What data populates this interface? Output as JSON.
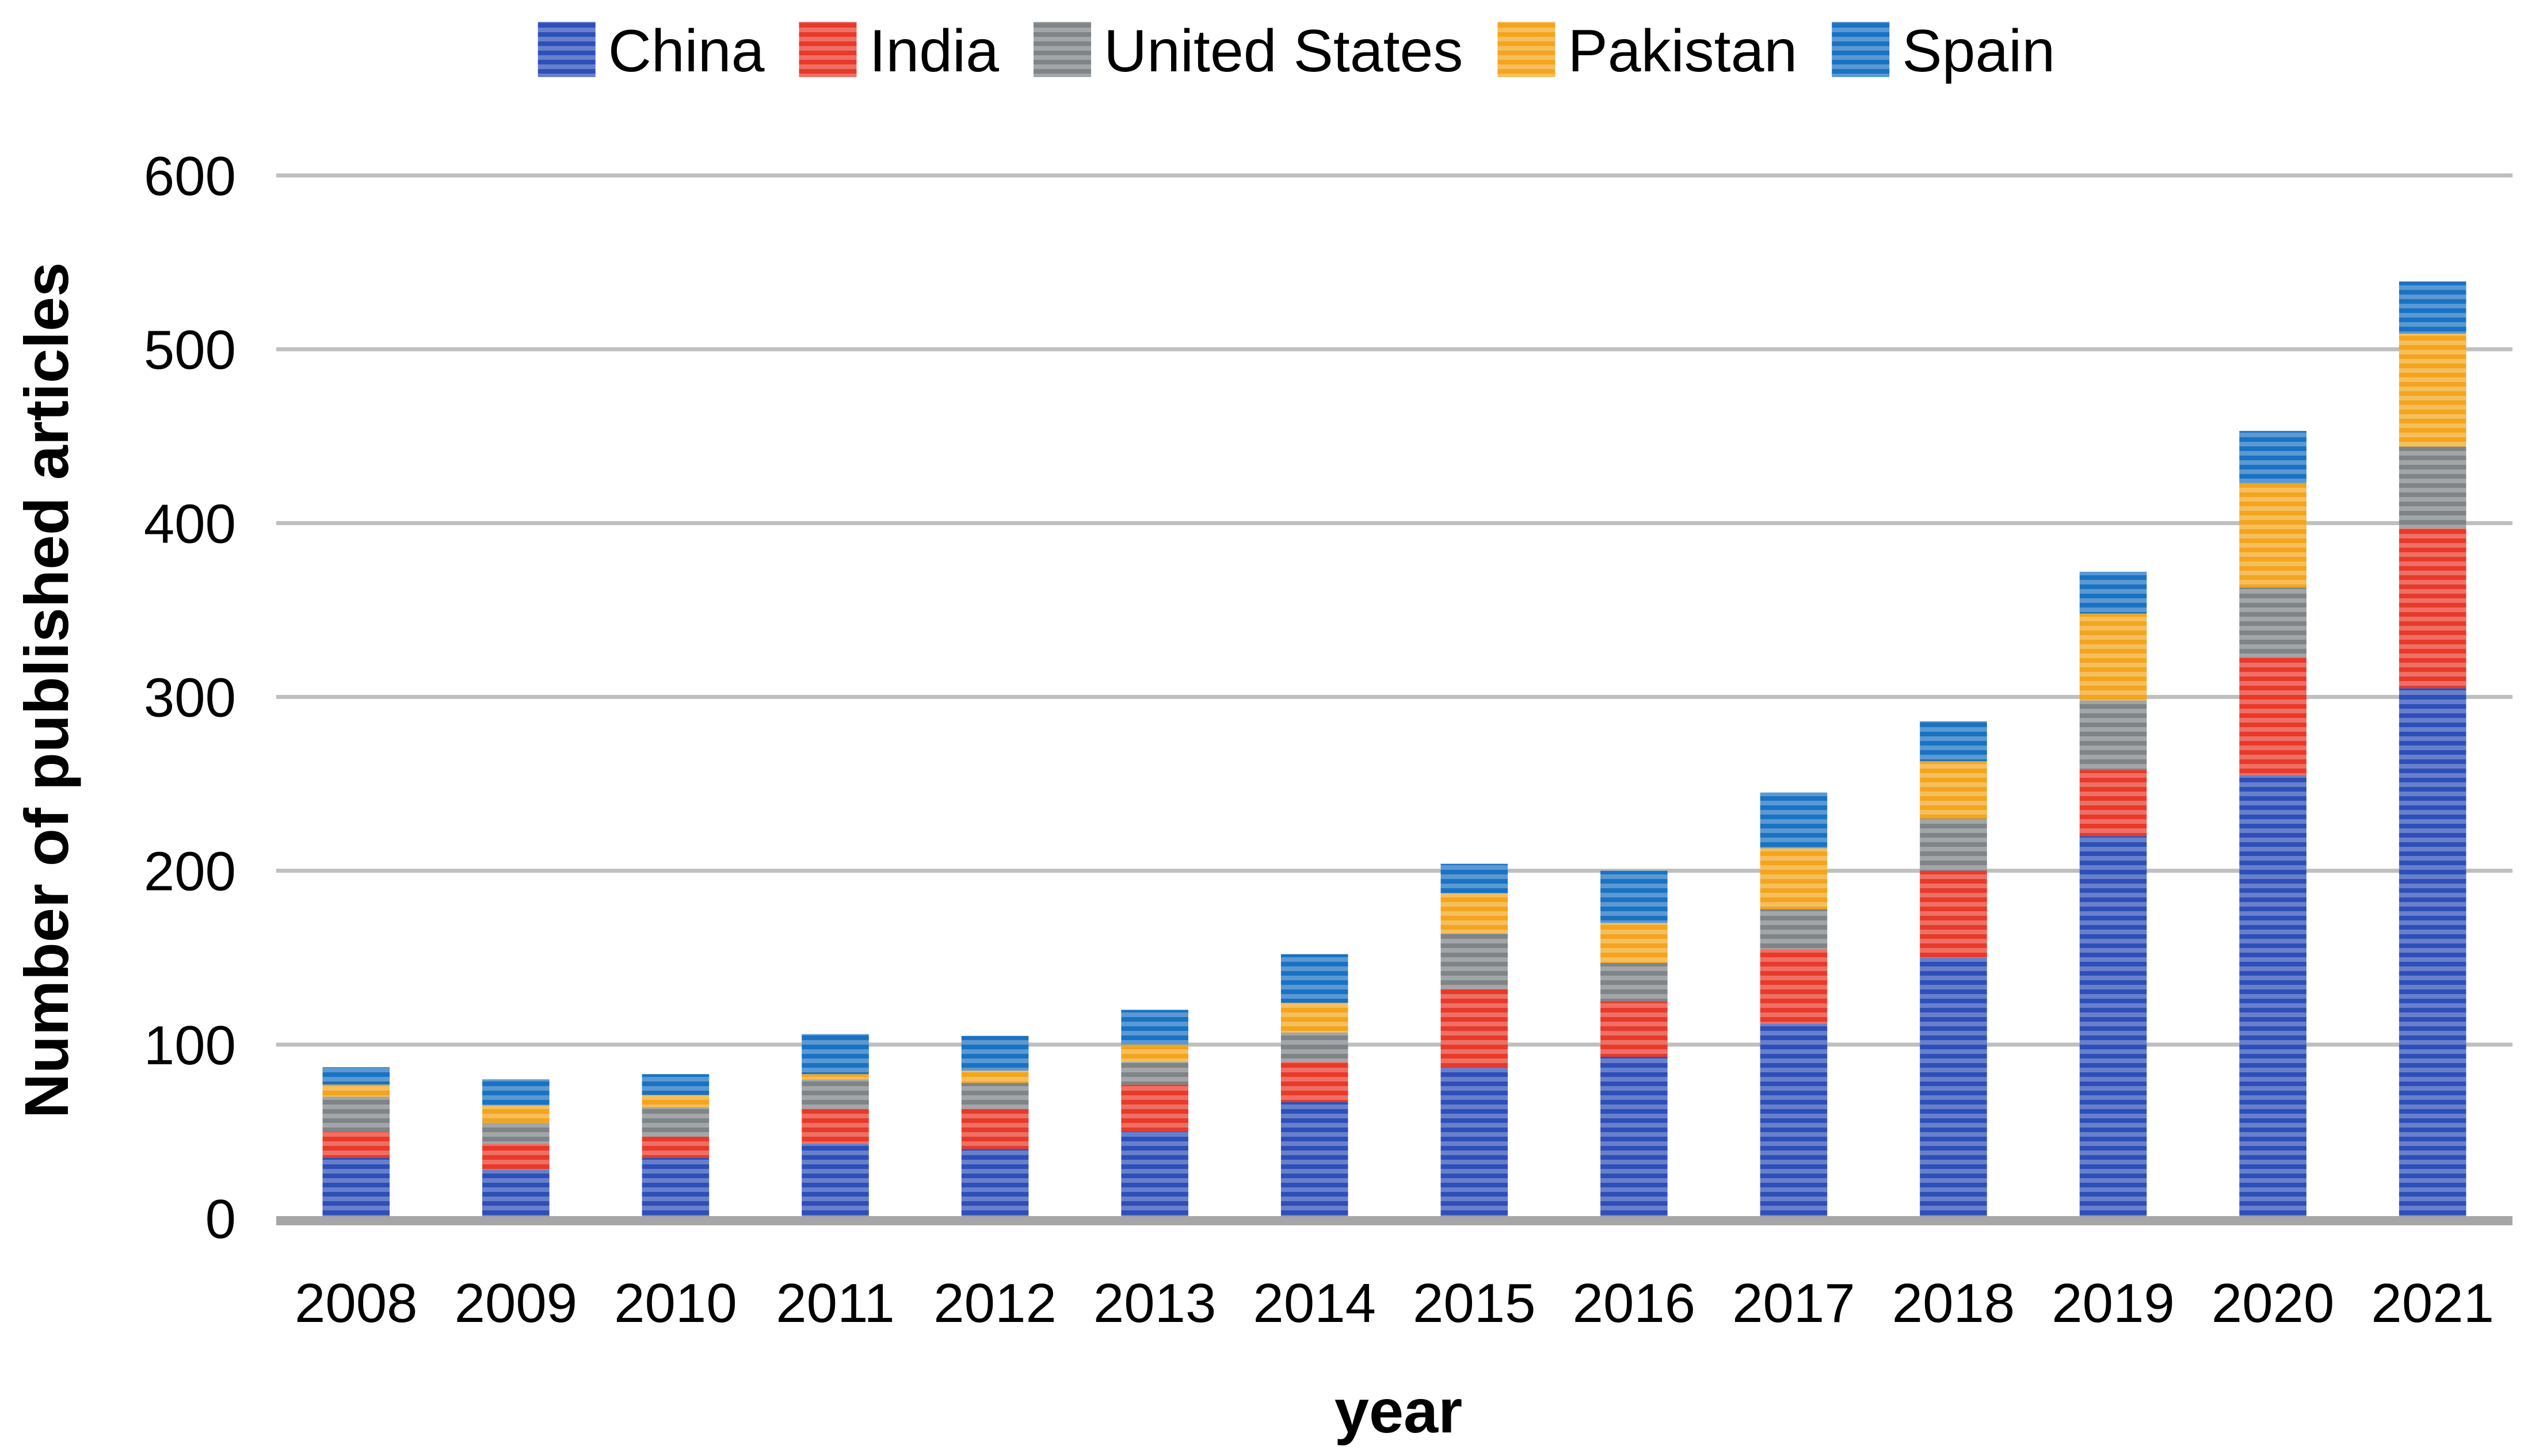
{
  "chart_data": {
    "type": "bar",
    "stacked": true,
    "title": "",
    "xlabel": "year",
    "ylabel": "Number of published articles",
    "ylim": [
      0,
      600
    ],
    "yticks": [
      0,
      100,
      200,
      300,
      400,
      500,
      600
    ],
    "grid": true,
    "legend_position": "top",
    "categories": [
      "2008",
      "2009",
      "2010",
      "2011",
      "2012",
      "2013",
      "2014",
      "2015",
      "2016",
      "2017",
      "2018",
      "2019",
      "2020",
      "2021"
    ],
    "series": [
      {
        "name": "China",
        "color": "#2E4FB8",
        "values": [
          35,
          28,
          35,
          43,
          40,
          50,
          67,
          87,
          93,
          112,
          150,
          220,
          255,
          305
        ]
      },
      {
        "name": "India",
        "color": "#E8392A",
        "values": [
          15,
          15,
          12,
          20,
          23,
          27,
          23,
          45,
          32,
          43,
          50,
          38,
          68,
          92
        ]
      },
      {
        "name": "United States",
        "color": "#7F8487",
        "values": [
          20,
          12,
          17,
          17,
          15,
          13,
          17,
          32,
          22,
          23,
          30,
          40,
          40,
          47
        ]
      },
      {
        "name": "Pakistan",
        "color": "#F3A51E",
        "values": [
          7,
          10,
          7,
          3,
          7,
          10,
          17,
          23,
          23,
          35,
          33,
          50,
          60,
          65
        ]
      },
      {
        "name": "Spain",
        "color": "#1A72C2",
        "values": [
          10,
          15,
          12,
          23,
          20,
          20,
          28,
          17,
          30,
          32,
          23,
          24,
          30,
          30
        ]
      }
    ]
  }
}
